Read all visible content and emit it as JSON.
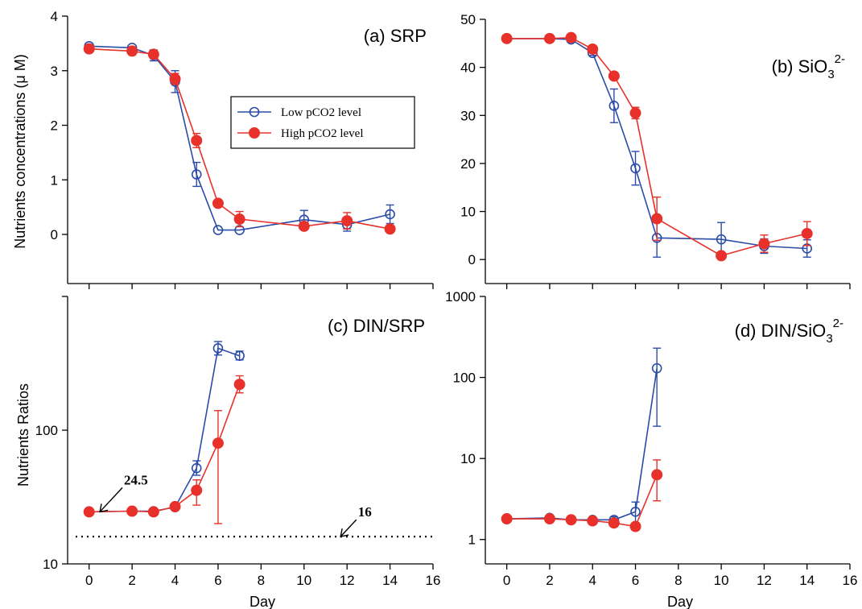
{
  "colors": {
    "low": "#2b4ba8",
    "high": "#e8312a",
    "axis": "#000000"
  },
  "y_axis_titles": {
    "top": "Nutrients concentrations (μ M)",
    "bottom": "Nutrients Ratios"
  },
  "x_axis_title": "Day",
  "chart_data": [
    {
      "id": "a",
      "type": "line",
      "label": "(a) SRP",
      "xlim": [
        -1,
        16
      ],
      "ylim": [
        -0.9,
        4
      ],
      "x_ticks": [
        0,
        2,
        4,
        6,
        8,
        10,
        12,
        14,
        16
      ],
      "x_ticklabels_shown": false,
      "y_ticks": [
        0,
        1,
        2,
        3,
        4
      ],
      "legend": {
        "position": "center",
        "entries": [
          "Low pCO2 level",
          "High pCO2 level"
        ]
      },
      "series": [
        {
          "name": "Low pCO2 level",
          "key": "low",
          "marker": "open-circle",
          "x": [
            0,
            2,
            3,
            4,
            5,
            6,
            7,
            10,
            12,
            14
          ],
          "y": [
            3.45,
            3.42,
            3.28,
            2.8,
            1.1,
            0.08,
            0.08,
            0.27,
            0.18,
            0.37
          ],
          "err": [
            0,
            0,
            0.1,
            0.2,
            0.22,
            0,
            0,
            0.17,
            0.12,
            0.17
          ]
        },
        {
          "name": "High pCO2 level",
          "key": "high",
          "marker": "filled-circle",
          "x": [
            0,
            2,
            3,
            4,
            5,
            6,
            7,
            10,
            12,
            14
          ],
          "y": [
            3.4,
            3.36,
            3.3,
            2.85,
            1.72,
            0.57,
            0.28,
            0.15,
            0.25,
            0.1
          ],
          "err": [
            0,
            0,
            0.07,
            0.1,
            0.13,
            0.06,
            0.14,
            0.06,
            0.15,
            0
          ]
        }
      ]
    },
    {
      "id": "b",
      "type": "line",
      "label": "(b)  SiO",
      "label_sub": "3",
      "label_sup": "2-",
      "xlim": [
        -1,
        16
      ],
      "ylim": [
        -5,
        50
      ],
      "x_ticks": [
        0,
        2,
        4,
        6,
        8,
        10,
        12,
        14,
        16
      ],
      "x_ticklabels_shown": false,
      "y_ticks": [
        0,
        10,
        20,
        30,
        40,
        50
      ],
      "series": [
        {
          "name": "Low pCO2 level",
          "key": "low",
          "marker": "open-circle",
          "x": [
            0,
            2,
            3,
            4,
            5,
            6,
            7,
            10,
            12,
            14
          ],
          "y": [
            46,
            46,
            45.8,
            43,
            32,
            19,
            4.5,
            4.2,
            2.8,
            2.3
          ],
          "err": [
            0,
            0,
            0.5,
            0.5,
            3.5,
            3.5,
            4,
            3.5,
            1.5,
            1.8
          ]
        },
        {
          "name": "High pCO2 level",
          "key": "high",
          "marker": "filled-circle",
          "x": [
            0,
            2,
            3,
            4,
            5,
            6,
            7,
            10,
            12,
            14
          ],
          "y": [
            46,
            46,
            46.2,
            43.8,
            38.2,
            30.5,
            8.5,
            0.8,
            3.3,
            5.4
          ],
          "err": [
            0,
            0,
            0.4,
            0.4,
            0.3,
            1.2,
            4.5,
            0,
            1.8,
            2.5
          ]
        }
      ]
    },
    {
      "id": "c",
      "type": "line",
      "label": "(c)  DIN/SRP",
      "xlim": [
        -1,
        16
      ],
      "ylim": [
        10,
        1000
      ],
      "log_y": true,
      "x_ticks": [
        0,
        2,
        4,
        6,
        8,
        10,
        12,
        14,
        16
      ],
      "y_ticks": [
        10,
        100
      ],
      "y_ticks_unlabeled": [
        1000
      ],
      "reference_line": {
        "y": 16,
        "style": "dotted"
      },
      "annotations": [
        {
          "text": "24.5",
          "points_to": [
            0.5,
            24.5
          ]
        },
        {
          "text": "16",
          "points_to": [
            11.7,
            16
          ]
        }
      ],
      "series": [
        {
          "name": "Low pCO2 level",
          "key": "low",
          "marker": "open-circle",
          "x": [
            0,
            2,
            3,
            4,
            5,
            6,
            7
          ],
          "y": [
            24.5,
            24.8,
            24.8,
            26.5,
            52,
            410,
            360
          ],
          "err_low": [
            0,
            0,
            0,
            0,
            6,
            45,
            25
          ],
          "err_high": [
            0,
            0,
            0,
            0,
            7,
            50,
            30
          ]
        },
        {
          "name": "High pCO2 level",
          "key": "high",
          "marker": "filled-circle",
          "x": [
            0,
            2,
            3,
            4,
            5,
            6,
            7
          ],
          "y": [
            24.5,
            24.8,
            24.5,
            26.8,
            35.5,
            80,
            220
          ],
          "err_low": [
            0,
            0,
            0,
            0,
            8,
            60,
            30
          ],
          "err_high": [
            0,
            0,
            0,
            0,
            7,
            60,
            35
          ]
        }
      ]
    },
    {
      "id": "d",
      "type": "line",
      "label": "(d)  DIN/SiO",
      "label_sub": "3",
      "label_sup": "2-",
      "xlim": [
        -1,
        16
      ],
      "ylim": [
        0.5,
        1000
      ],
      "log_y": true,
      "x_ticks": [
        0,
        2,
        4,
        6,
        8,
        10,
        12,
        14,
        16
      ],
      "y_ticks": [
        1,
        10,
        100,
        1000
      ],
      "series": [
        {
          "name": "Low pCO2 level",
          "key": "low",
          "marker": "open-circle",
          "x": [
            0,
            2,
            3,
            4,
            5,
            6,
            7
          ],
          "y": [
            1.8,
            1.85,
            1.75,
            1.75,
            1.75,
            2.2,
            130
          ],
          "err_low": [
            0,
            0,
            0,
            0,
            0.15,
            0.7,
            105
          ],
          "err_high": [
            0,
            0,
            0,
            0,
            0.15,
            0.7,
            100
          ]
        },
        {
          "name": "High pCO2 level",
          "key": "high",
          "marker": "filled-circle",
          "x": [
            0,
            2,
            3,
            4,
            5,
            6,
            7
          ],
          "y": [
            1.8,
            1.8,
            1.75,
            1.7,
            1.6,
            1.45,
            6.3
          ],
          "err_low": [
            0,
            0,
            0,
            0,
            0,
            0.15,
            3.3
          ],
          "err_high": [
            0,
            0,
            0,
            0,
            0,
            0.15,
            3.3
          ]
        }
      ]
    }
  ]
}
